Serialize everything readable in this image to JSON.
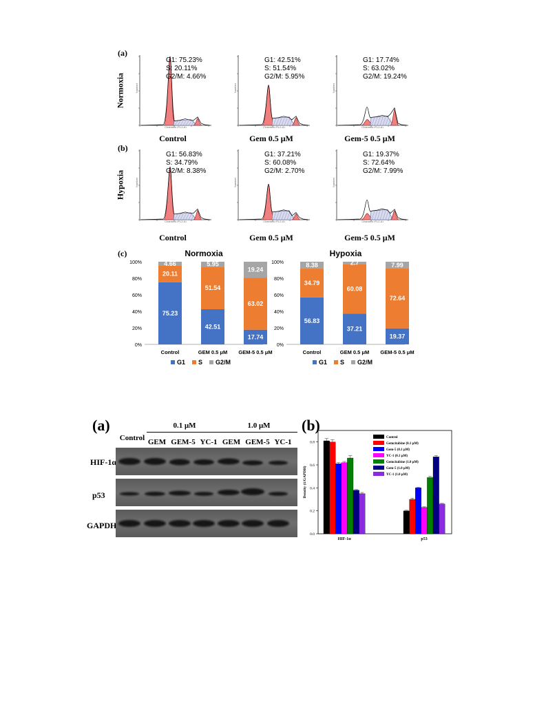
{
  "panel_labels": {
    "a": "(a)",
    "b": "(b)",
    "c": "(c)",
    "wa": "(a)",
    "wb": "(b)"
  },
  "flow": {
    "row_labels": [
      "Normoxia",
      "Hypoxia"
    ],
    "axis_x_label": "Channels (FL2-A)",
    "axis_y_label": "Number",
    "rows": [
      [
        {
          "caption": "Control",
          "stats": [
            "G1: 75.23%",
            "S: 20.11%",
            "G2/M: 4.66%"
          ],
          "g1": 75.23,
          "s": 20.11,
          "g2m": 4.66,
          "outline": false
        },
        {
          "caption": "Gem 0.5 μM",
          "stats": [
            "G1: 42.51%",
            "S: 51.54%",
            "G2/M: 5.95%"
          ],
          "g1": 42.51,
          "s": 51.54,
          "g2m": 5.95,
          "outline": false
        },
        {
          "caption": "Gem-5 0.5 μM",
          "stats": [
            "G1: 17.74%",
            "S: 63.02%",
            "G2/M: 19.24%"
          ],
          "g1": 17.74,
          "s": 63.02,
          "g2m": 19.24,
          "outline": true
        }
      ],
      [
        {
          "caption": "Control",
          "stats": [
            "G1: 56.83%",
            "S: 34.79%",
            "G2/M: 8.38%"
          ],
          "g1": 56.83,
          "s": 34.79,
          "g2m": 8.38,
          "outline": false
        },
        {
          "caption": "Gem 0.5 μM",
          "stats": [
            "G1: 37.21%",
            "S: 60.08%",
            "G2/M: 2.70%"
          ],
          "g1": 37.21,
          "s": 60.08,
          "g2m": 2.7,
          "outline": false
        },
        {
          "caption": "Gem-5 0.5 μM",
          "stats": [
            "G1: 19.37%",
            "S: 72.64%",
            "G2/M: 7.99%"
          ],
          "g1": 19.37,
          "s": 72.64,
          "g2m": 7.99,
          "outline": true
        }
      ]
    ]
  },
  "colors": {
    "g1": "#4472C4",
    "s": "#ED7D31",
    "g2m": "#A5A5A5",
    "peak": "#F08080"
  },
  "wb": {
    "headers": {
      "control": "Control",
      "low": "0.1 μM",
      "high": "1.0 μM",
      "gem": "GEM",
      "gem5": "GEM-5",
      "yc1": "YC-1"
    },
    "lanes": [
      "HIF-1α",
      "p53",
      "GAPDH"
    ]
  },
  "chart_data": [
    {
      "type": "bar",
      "subtype": "stacked-percent",
      "title": "Normoxia",
      "categories": [
        "Control",
        "GEM 0.5 μM",
        "GEM-5 0.5 μM"
      ],
      "series": [
        {
          "name": "G1",
          "values": [
            75.23,
            42.51,
            17.74
          ],
          "color": "#4472C4"
        },
        {
          "name": "S",
          "values": [
            20.11,
            51.54,
            63.02
          ],
          "color": "#ED7D31"
        },
        {
          "name": "G2/M",
          "values": [
            4.66,
            5.95,
            19.24
          ],
          "color": "#A5A5A5"
        }
      ],
      "data_labels": [
        [
          "75.23",
          "42.51",
          "17.74"
        ],
        [
          "20.11",
          "51.54",
          "63.02"
        ],
        [
          "4.66",
          "5.95",
          "19.24"
        ]
      ],
      "ylim": [
        0,
        100
      ],
      "yticks": [
        "0%",
        "20%",
        "40%",
        "60%",
        "80%",
        "100%"
      ],
      "legend": "bottom"
    },
    {
      "type": "bar",
      "subtype": "stacked-percent",
      "title": "Hypoxia",
      "categories": [
        "Control",
        "GEM 0.5 μM",
        "GEM-5 0.5 μM"
      ],
      "series": [
        {
          "name": "G1",
          "values": [
            56.83,
            37.21,
            19.37
          ],
          "color": "#4472C4"
        },
        {
          "name": "S",
          "values": [
            34.79,
            60.08,
            72.64
          ],
          "color": "#ED7D31"
        },
        {
          "name": "G2/M",
          "values": [
            8.38,
            2.7,
            7.99
          ],
          "color": "#A5A5A5"
        }
      ],
      "data_labels": [
        [
          "56.83",
          "37.21",
          "19.37"
        ],
        [
          "34.79",
          "60.08",
          "72.64"
        ],
        [
          "8.38",
          "2.7",
          "7.99"
        ]
      ],
      "ylim": [
        0,
        100
      ],
      "yticks": [
        "0%",
        "20%",
        "40%",
        "60%",
        "80%",
        "100%"
      ],
      "legend": "bottom"
    },
    {
      "type": "bar",
      "subtype": "grouped",
      "categories": [
        "HIF-1α",
        "p53"
      ],
      "ylabel": "Density (1/GAPDH)",
      "ylim": [
        0,
        0.9
      ],
      "yticks": [
        "0.0",
        "0.2",
        "0.4",
        "0.6",
        "0.8"
      ],
      "legend": "top-right",
      "series": [
        {
          "name": "Control",
          "values": [
            0.81,
            0.2
          ],
          "errors": [
            0.02,
            0.005
          ],
          "color": "#000000"
        },
        {
          "name": "Gemcitabine (0.1 μM)",
          "values": [
            0.8,
            0.3
          ],
          "errors": [
            0.02,
            0.01
          ],
          "color": "#FF0000"
        },
        {
          "name": "Gem-5 (0.1 μM)",
          "values": [
            0.61,
            0.4
          ],
          "errors": [
            0.01,
            0.005
          ],
          "color": "#0000FF"
        },
        {
          "name": "YC-1 (0.1 μM)",
          "values": [
            0.62,
            0.23
          ],
          "errors": [
            0.01,
            0.005
          ],
          "color": "#FF00FF"
        },
        {
          "name": "Gemcitabine (1.0 μM)",
          "values": [
            0.66,
            0.49
          ],
          "errors": [
            0.02,
            0.01
          ],
          "color": "#008000"
        },
        {
          "name": "Gem-5 (1.0 μM)",
          "values": [
            0.38,
            0.67
          ],
          "errors": [
            0.005,
            0.01
          ],
          "color": "#000080"
        },
        {
          "name": "YC-1 (1.0 μM)",
          "values": [
            0.35,
            0.26
          ],
          "errors": [
            0.01,
            0.005
          ],
          "color": "#8A2BE2"
        }
      ]
    }
  ]
}
